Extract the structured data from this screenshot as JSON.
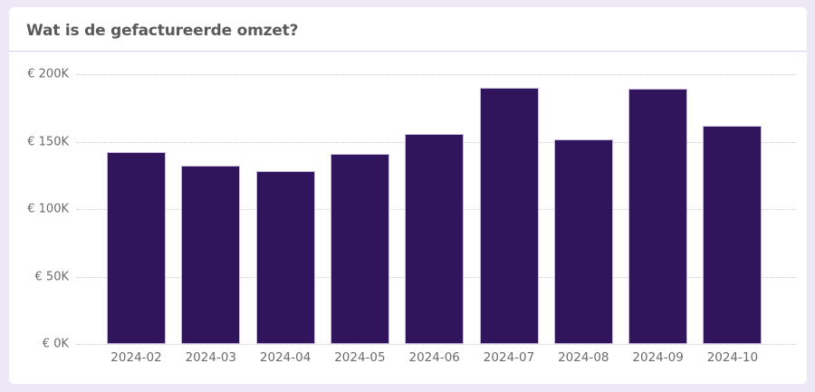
{
  "card": {
    "title": "Wat is de gefactureerde omzet?"
  },
  "colors": {
    "bar": "#30155C",
    "page_background": "#ECE8F5",
    "separator": "#D9CDF3"
  },
  "chart_data": {
    "type": "bar",
    "title": "Wat is de gefactureerde omzet?",
    "xlabel": "",
    "ylabel": "",
    "categories": [
      "2024-02",
      "2024-03",
      "2024-04",
      "2024-05",
      "2024-06",
      "2024-07",
      "2024-08",
      "2024-09",
      "2024-10"
    ],
    "values": [
      142000,
      132000,
      128000,
      141000,
      156000,
      190000,
      152000,
      189000,
      162000
    ],
    "ylim": [
      0,
      200000
    ],
    "yticks": [
      0,
      50000,
      100000,
      150000,
      200000
    ],
    "ytick_labels": [
      "€ 0K",
      "€ 50K",
      "€ 100K",
      "€ 150K",
      "€ 200K"
    ],
    "grid": true,
    "legend": null
  }
}
